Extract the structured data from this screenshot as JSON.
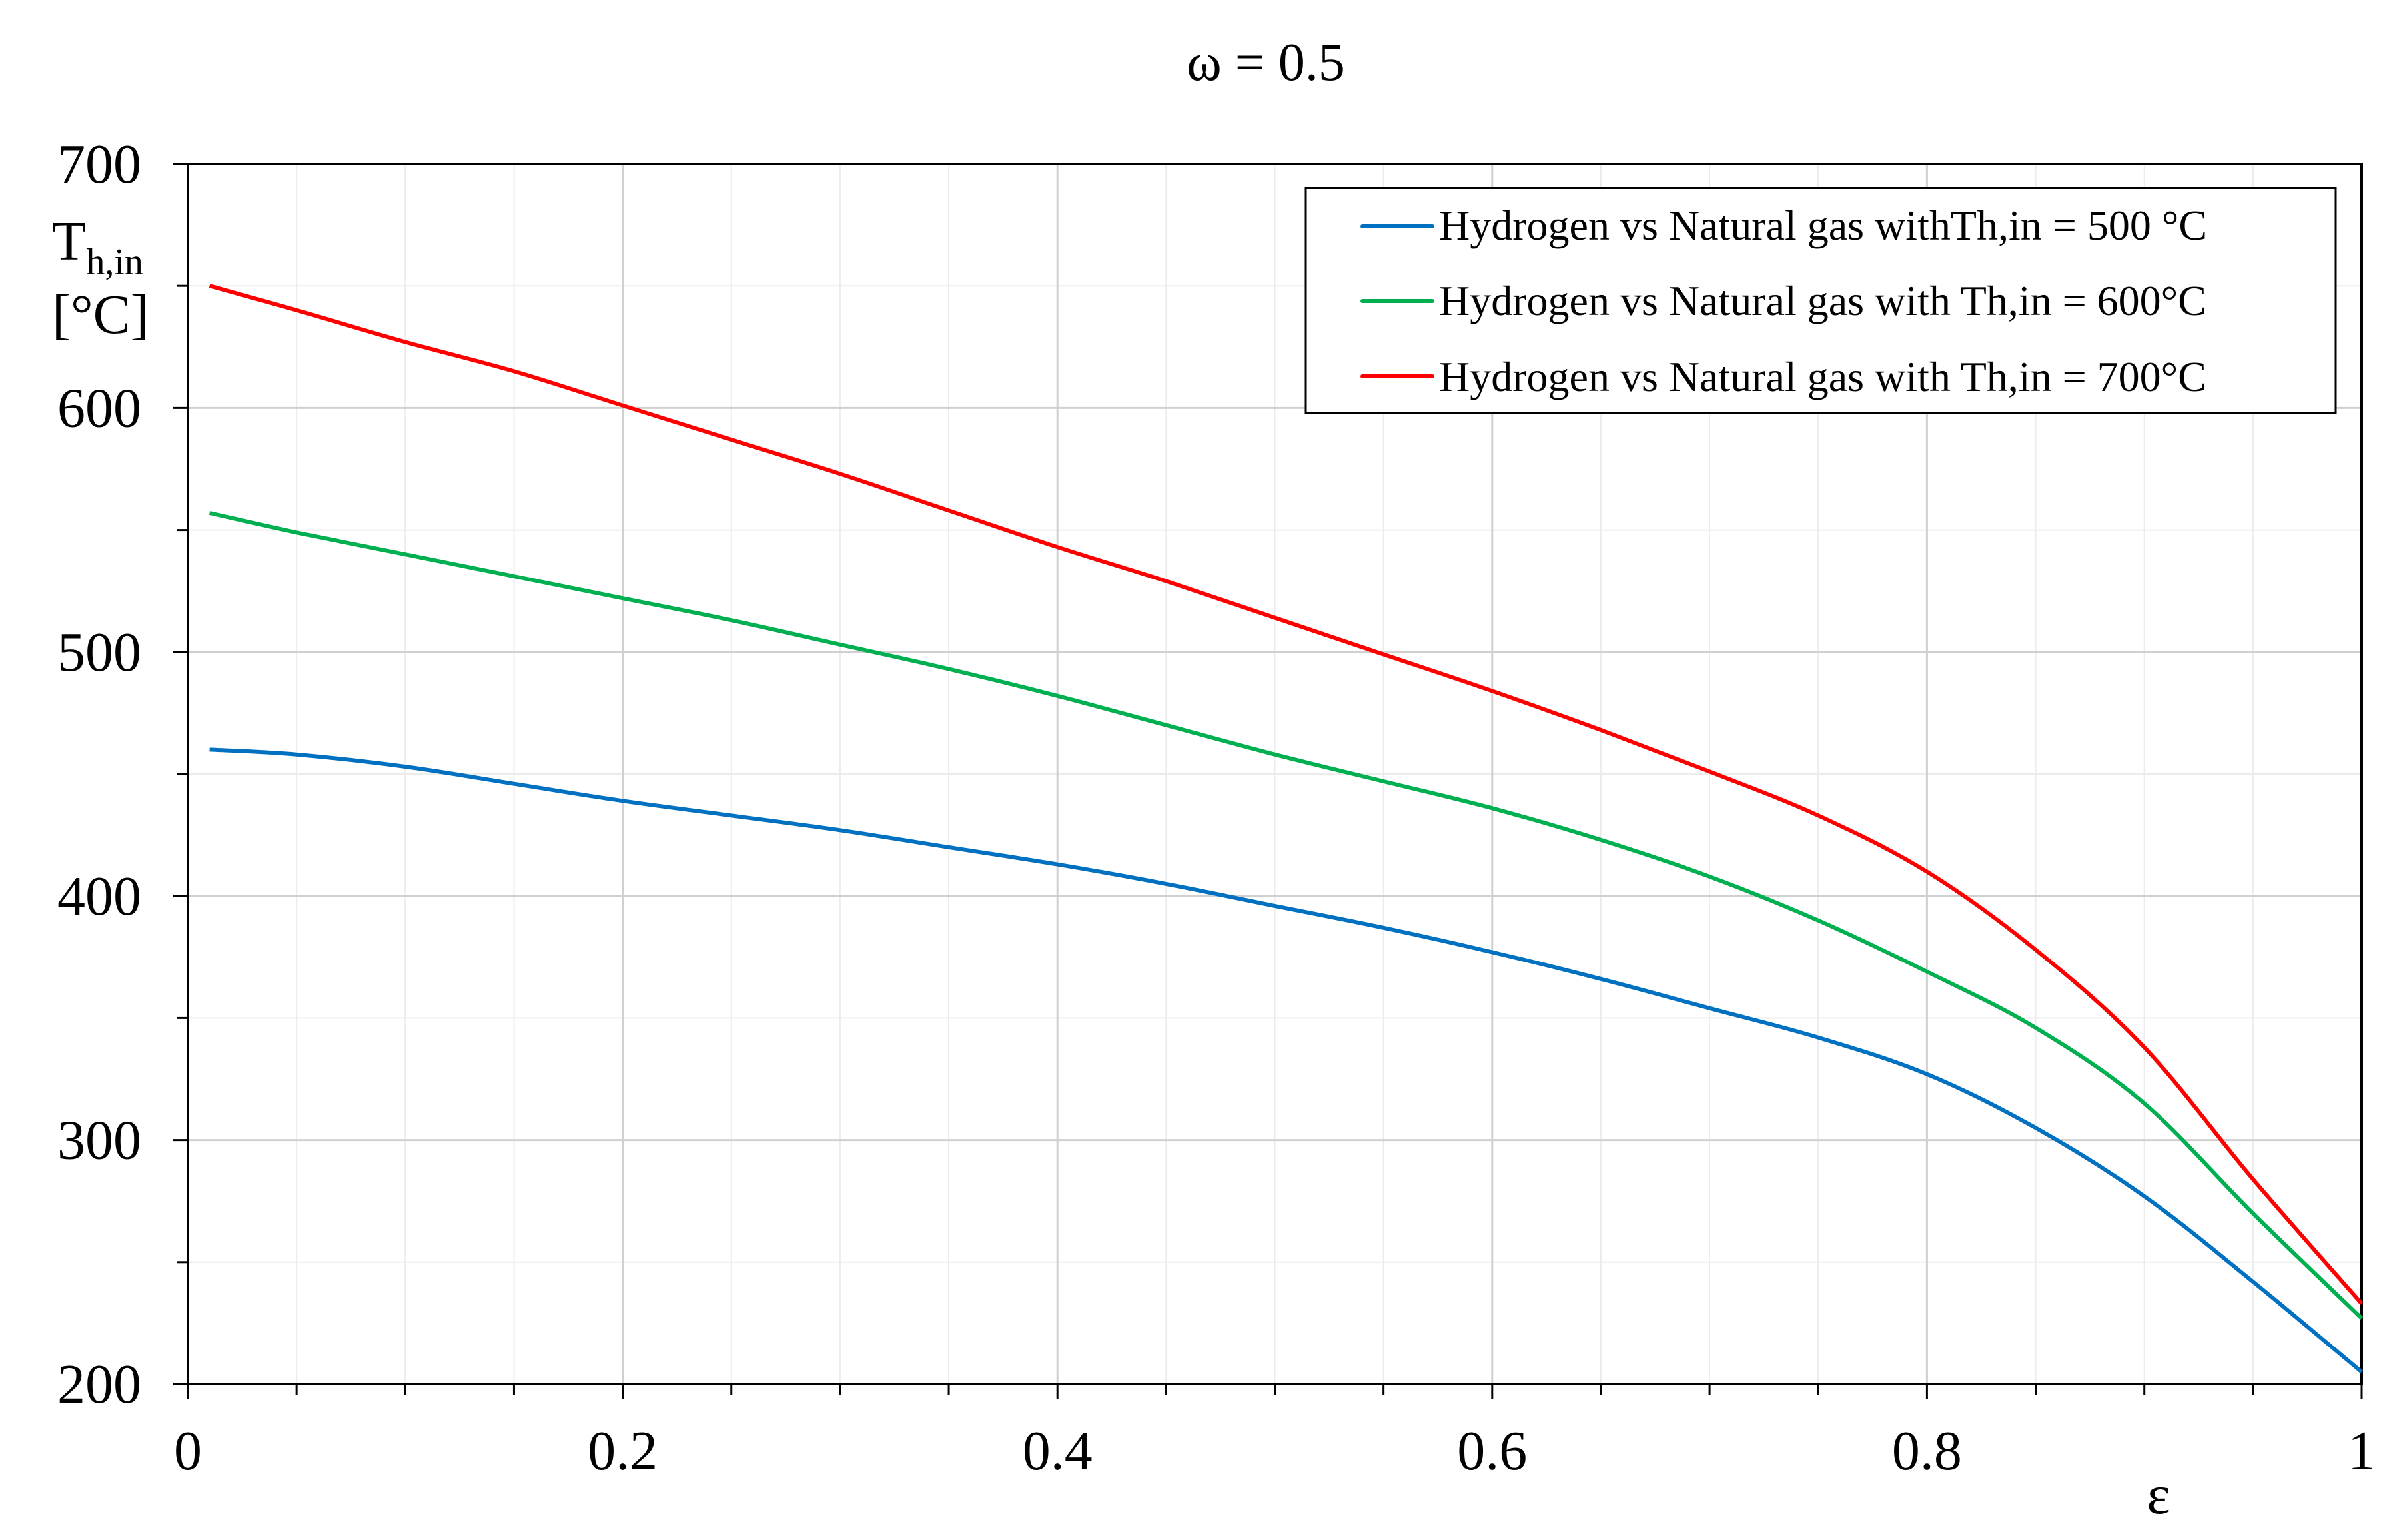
{
  "chart_data": {
    "type": "line",
    "title": "ω = 0.5",
    "xlabel": "ε",
    "ylabel_main": "T",
    "ylabel_sub": "h,in",
    "ylabel_unit": "[°C]",
    "xlim": [
      0,
      1
    ],
    "ylim": [
      200,
      700
    ],
    "x_ticks": [
      0,
      0.2,
      0.4,
      0.6,
      0.8,
      1
    ],
    "x_tick_labels": [
      "0",
      "0.2",
      "0.4",
      "0.6",
      "0.8",
      "1"
    ],
    "y_ticks": [
      200,
      300,
      400,
      500,
      600,
      700
    ],
    "y_tick_labels": [
      "200",
      "300",
      "400",
      "500",
      "600",
      "700"
    ],
    "x_minor_step": 0.05,
    "y_minor_step": 50,
    "grid": true,
    "legend_position": "top-right",
    "series": [
      {
        "name": "Hydrogen vs Natural gas withTh,in = 500 °C",
        "color": "#0070C0",
        "x": [
          0.01,
          0.05,
          0.1,
          0.15,
          0.2,
          0.25,
          0.3,
          0.35,
          0.4,
          0.45,
          0.5,
          0.55,
          0.6,
          0.65,
          0.7,
          0.75,
          0.8,
          0.85,
          0.9,
          0.95,
          1.0
        ],
        "values": [
          460,
          458,
          453,
          446,
          439,
          433,
          427,
          420,
          413,
          405,
          396,
          387,
          377,
          366,
          354,
          342,
          327,
          305,
          277,
          242,
          205
        ]
      },
      {
        "name": "Hydrogen vs Natural gas with Th,in = 600°C",
        "color": "#00B050",
        "x": [
          0.01,
          0.05,
          0.1,
          0.15,
          0.2,
          0.25,
          0.3,
          0.35,
          0.4,
          0.45,
          0.5,
          0.55,
          0.6,
          0.65,
          0.7,
          0.75,
          0.8,
          0.85,
          0.9,
          0.95,
          1.0
        ],
        "values": [
          557,
          549,
          540,
          531,
          522,
          513,
          503,
          493,
          482,
          470,
          458,
          447,
          436,
          423,
          408,
          390,
          369,
          346,
          315,
          270,
          227
        ]
      },
      {
        "name": "Hydrogen vs Natural gas with Th,in = 700°C",
        "color": "#FF0000",
        "x": [
          0.01,
          0.05,
          0.1,
          0.15,
          0.2,
          0.25,
          0.3,
          0.35,
          0.4,
          0.45,
          0.5,
          0.55,
          0.6,
          0.65,
          0.7,
          0.75,
          0.8,
          0.85,
          0.9,
          0.95,
          1.0
        ],
        "values": [
          650,
          640,
          627,
          615,
          601,
          587,
          573,
          558,
          543,
          529,
          514,
          499,
          484,
          468,
          451,
          433,
          410,
          378,
          338,
          284,
          233
        ]
      }
    ]
  }
}
